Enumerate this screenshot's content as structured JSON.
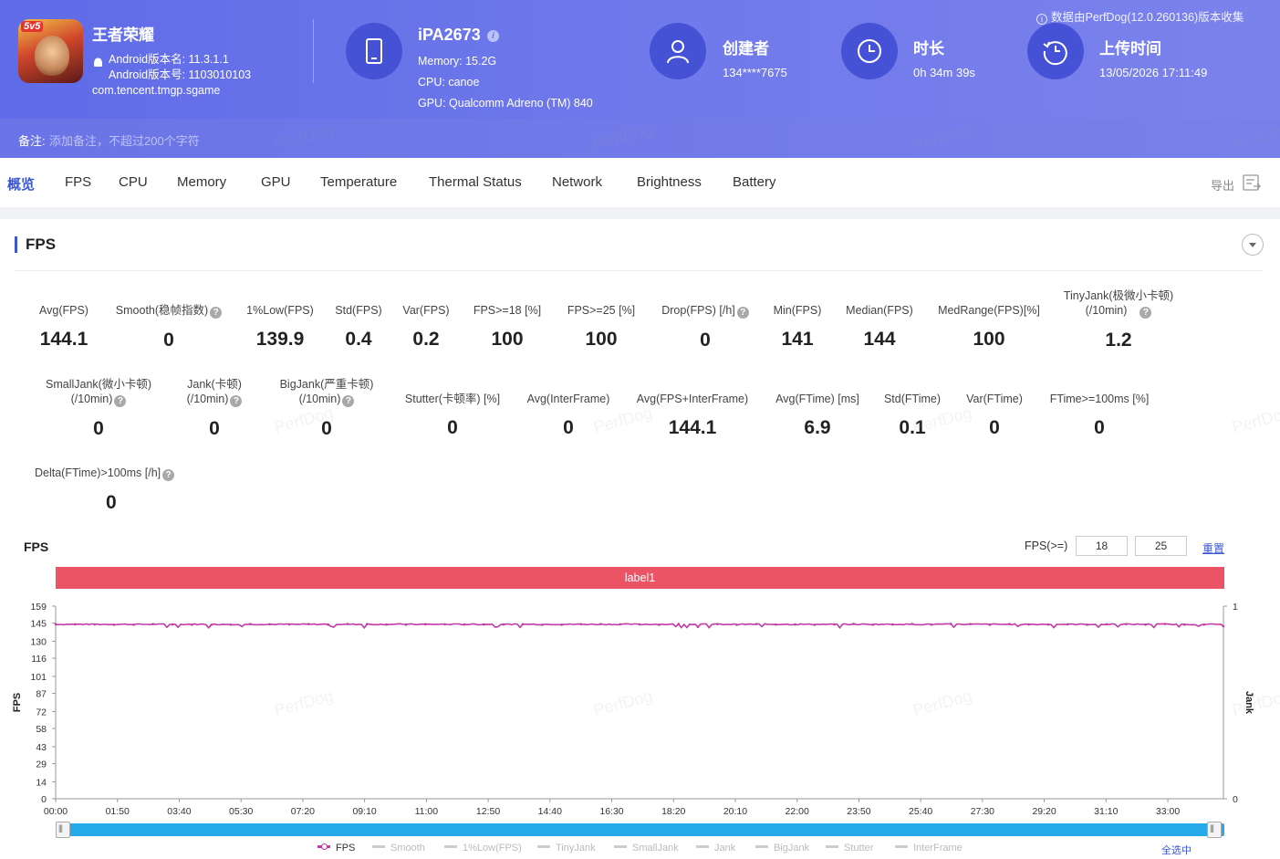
{
  "app": {
    "name": "王者荣耀",
    "icon_badge": "5v5",
    "android_version_name": "Android版本名: 11.3.1.1",
    "android_version_code": "Android版本号: 1103010103",
    "package": "com.tencent.tmgp.sgame"
  },
  "device": {
    "name": "iPA2673",
    "memory": "Memory: 15.2G",
    "cpu": "CPU: canoe",
    "gpu": "GPU: Qualcomm Adreno (TM) 840"
  },
  "creator": {
    "title": "创建者",
    "value": "134****7675"
  },
  "duration": {
    "title": "时长",
    "value": "0h 34m 39s"
  },
  "upload": {
    "title": "上传时间",
    "value": "13/05/2026 17:11:49"
  },
  "source_note": "数据由PerfDog(12.0.260136)版本收集",
  "note": {
    "label": "备注:",
    "placeholder": "添加备注，不超过200个字符"
  },
  "tabs": [
    "概览",
    "FPS",
    "CPU",
    "Memory",
    "GPU",
    "Temperature",
    "Thermal Status",
    "Network",
    "Brightness",
    "Battery"
  ],
  "export_label": "导出",
  "section_title": "FPS",
  "metrics_row1": [
    {
      "label": "Avg(FPS)",
      "value": "144.1"
    },
    {
      "label": "Smooth(稳帧指数)",
      "value": "0"
    },
    {
      "label": "1%Low(FPS)",
      "value": "139.9"
    },
    {
      "label": "Std(FPS)",
      "value": "0.4"
    },
    {
      "label": "Var(FPS)",
      "value": "0.2"
    },
    {
      "label": "FPS>=18 [%]",
      "value": "100"
    },
    {
      "label": "FPS>=25 [%]",
      "value": "100"
    },
    {
      "label": "Drop(FPS) [/h]",
      "value": "0"
    },
    {
      "label": "Min(FPS)",
      "value": "141"
    },
    {
      "label": "Median(FPS)",
      "value": "144"
    },
    {
      "label": "MedRange(FPS)[%]",
      "value": "100"
    },
    {
      "label": "TinyJank(极微小卡顿)",
      "label2": "(/10min)",
      "value": "1.2"
    }
  ],
  "metrics_row2": [
    {
      "label": "SmallJank(微小卡顿)",
      "label2": "(/10min)",
      "value": "0"
    },
    {
      "label": "Jank(卡顿)",
      "label2": "(/10min)",
      "value": "0"
    },
    {
      "label": "BigJank(严重卡顿)",
      "label2": "(/10min)",
      "value": "0"
    },
    {
      "label": "Stutter(卡顿率) [%]",
      "value": "0"
    },
    {
      "label": "Avg(InterFrame)",
      "value": "0"
    },
    {
      "label": "Avg(FPS+InterFrame)",
      "value": "144.1"
    },
    {
      "label": "Avg(FTime) [ms]",
      "value": "6.9"
    },
    {
      "label": "Std(FTime)",
      "value": "0.1"
    },
    {
      "label": "Var(FTime)",
      "value": "0"
    },
    {
      "label": "FTime>=100ms [%]",
      "value": "0"
    }
  ],
  "metrics_row3": [
    {
      "label": "Delta(FTime)>100ms [/h]",
      "value": "0"
    }
  ],
  "chart_controls": {
    "title": "FPS",
    "threshold_label": "FPS(>=)",
    "threshold_1": "18",
    "threshold_2": "25",
    "reset_label": "重置",
    "band_label": "label1",
    "select_all": "全选中"
  },
  "watermark": "PerfDog",
  "chart_data": {
    "type": "line",
    "title": "FPS",
    "ylabel": "FPS",
    "y2label": "Jank",
    "y_ticks": [
      0,
      14,
      29,
      43,
      58,
      72,
      87,
      101,
      116,
      130,
      145,
      159
    ],
    "ylim": [
      0,
      159
    ],
    "y2_ticks": [
      0,
      1
    ],
    "x_ticks": [
      "00:00",
      "01:50",
      "03:40",
      "05:30",
      "07:20",
      "09:10",
      "11:00",
      "12:50",
      "14:40",
      "16:30",
      "18:20",
      "20:10",
      "22:00",
      "23:50",
      "25:40",
      "27:30",
      "29:20",
      "31:10",
      "33:00"
    ],
    "xlim_seconds": [
      0,
      2079
    ],
    "series": [
      {
        "name": "FPS",
        "color": "#c23aa6",
        "typical": 144,
        "min": 141,
        "max": 145
      },
      {
        "name": "Smooth"
      },
      {
        "name": "1%Low(FPS)"
      },
      {
        "name": "TinyJank"
      },
      {
        "name": "SmallJank"
      },
      {
        "name": "Jank"
      },
      {
        "name": "BigJank"
      },
      {
        "name": "Stutter"
      },
      {
        "name": "InterFrame"
      }
    ]
  },
  "colors": {
    "header": "#6a74e6",
    "accent": "#3a56d4",
    "band": "#eb5465",
    "slider": "#26a9e8",
    "fps_line": "#c23aa6"
  }
}
